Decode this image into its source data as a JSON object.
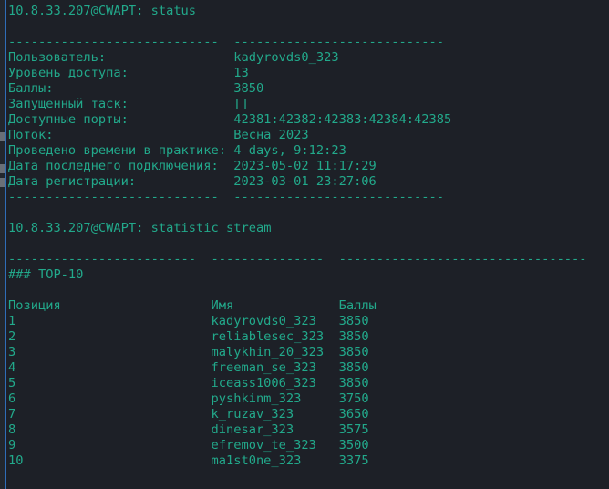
{
  "prompt": "10.8.33.207@CWAPT:",
  "status": {
    "command": "status",
    "separator_left": "----------------------------",
    "separator_right": "----------------------------",
    "rows": [
      {
        "label": "Пользователь:",
        "value": "kadyrovds0_323"
      },
      {
        "label": "Уровень доступа:",
        "value": "13"
      },
      {
        "label": "Баллы:",
        "value": "3850"
      },
      {
        "label": "Запущенный таск:",
        "value": "[]"
      },
      {
        "label": "Доступные порты:",
        "value": "42381:42382:42383:42384:42385"
      },
      {
        "label": "Поток:",
        "value": "Весна 2023"
      },
      {
        "label": "Проведено времени в практике:",
        "value": "4 days, 9:12:23"
      },
      {
        "label": "Дата последнего подключения:",
        "value": "2023-05-02 11:17:29"
      },
      {
        "label": "Дата регистрации:",
        "value": "2023-03-01 23:27:06"
      }
    ]
  },
  "stream": {
    "command": "statistic stream",
    "separators": [
      "-------------------------",
      "---------------",
      "---------------------------------"
    ],
    "heading": "### TOP-10",
    "columns": [
      "Позиция",
      "Имя",
      "Баллы"
    ],
    "rows": [
      [
        "1",
        "kadyrovds0_323",
        "3850"
      ],
      [
        "2",
        "reliablesec_323",
        "3850"
      ],
      [
        "3",
        "malykhin_20_323",
        "3850"
      ],
      [
        "4",
        "freeman_se_323",
        "3850"
      ],
      [
        "5",
        "iceass1006_323",
        "3850"
      ],
      [
        "6",
        "pyshkinm_323",
        "3750"
      ],
      [
        "7",
        "k_ruzav_323",
        "3650"
      ],
      [
        "8",
        "dinesar_323",
        "3575"
      ],
      [
        "9",
        "efremov_te_323",
        "3500"
      ],
      [
        "10",
        "ma1st0ne_323",
        "3375"
      ]
    ]
  }
}
